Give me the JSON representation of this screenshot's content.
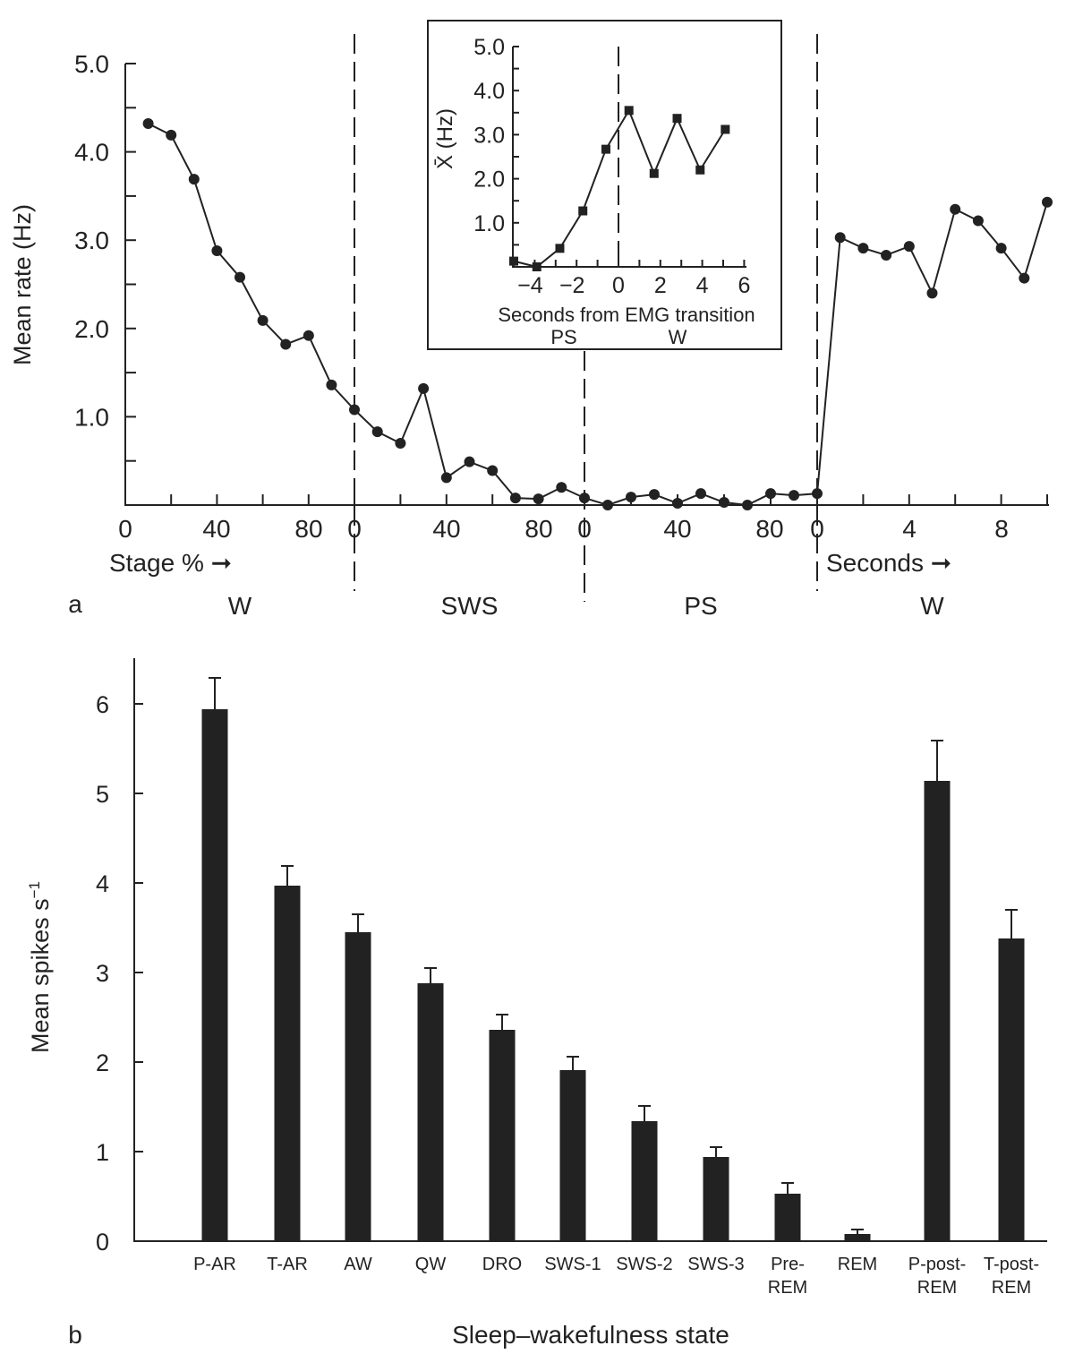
{
  "chart_data": [
    {
      "panel": "a",
      "type": "line",
      "ylabel": "Mean rate (Hz)",
      "ylim": [
        0,
        5.0
      ],
      "yticks": [
        "1.0",
        "2.0",
        "3.0",
        "4.0",
        "5.0"
      ],
      "xtick_labels": [
        "0",
        "40",
        "80",
        "0",
        "40",
        "80",
        "0",
        "40",
        "80",
        "0",
        "4",
        "8"
      ],
      "x_note_left": "Stage % ➞",
      "x_note_right": "Seconds ➞",
      "segments": [
        {
          "label": "W",
          "unit": "Stage %",
          "x": [
            10,
            20,
            30,
            40,
            50,
            60,
            70,
            80,
            90,
            100
          ],
          "y": [
            4.32,
            4.19,
            3.69,
            2.88,
            2.58,
            2.09,
            1.82,
            1.92,
            1.36,
            1.08
          ]
        },
        {
          "label": "SWS",
          "unit": "Stage %",
          "x": [
            10,
            20,
            30,
            40,
            50,
            60,
            70,
            80,
            90,
            100
          ],
          "y": [
            0.83,
            0.7,
            1.32,
            0.31,
            0.49,
            0.39,
            0.08,
            0.07,
            0.2,
            0.08
          ]
        },
        {
          "label": "PS",
          "unit": "Stage %",
          "x": [
            10,
            20,
            30,
            40,
            50,
            60,
            70,
            80,
            90,
            100
          ],
          "y": [
            0.0,
            0.09,
            0.12,
            0.02,
            0.13,
            0.03,
            0.0,
            0.13,
            0.11,
            0.13
          ]
        },
        {
          "label": "W",
          "unit": "Seconds",
          "x": [
            1,
            2,
            3,
            4,
            5,
            6,
            7,
            8,
            9,
            10
          ],
          "y": [
            3.03,
            2.91,
            2.83,
            2.93,
            2.4,
            3.35,
            3.22,
            2.91,
            2.57,
            3.43
          ]
        }
      ],
      "inset": {
        "type": "line",
        "ylabel": "X̄ (Hz)",
        "xlabel": "Seconds from EMG transition",
        "ylim": [
          0,
          5.0
        ],
        "xlim": [
          -5,
          6
        ],
        "yticks": [
          "1.0",
          "2.0",
          "3.0",
          "4.0",
          "5.0"
        ],
        "xticks": [
          "−4",
          "−2",
          "0",
          "2",
          "4",
          "6"
        ],
        "state_left": "PS",
        "state_right": "W",
        "x": [
          -5.0,
          -3.9,
          -2.8,
          -1.7,
          -0.6,
          0.5,
          1.7,
          2.8,
          3.9,
          5.1
        ],
        "y": [
          0.13,
          0.0,
          0.42,
          1.27,
          2.67,
          3.55,
          2.12,
          3.37,
          2.2,
          3.12
        ]
      }
    },
    {
      "panel": "b",
      "type": "bar",
      "ylabel": "Mean spikes s",
      "ylabel_sup": "−1",
      "xlabel": "Sleep–wakefulness state",
      "ylim": [
        0,
        6.5
      ],
      "yticks": [
        "0",
        "1",
        "2",
        "3",
        "4",
        "5",
        "6"
      ],
      "categories": [
        [
          "P-AR"
        ],
        [
          "T-AR"
        ],
        [
          "AW"
        ],
        [
          "QW"
        ],
        [
          "DRO"
        ],
        [
          "SWS-1"
        ],
        [
          "SWS-2"
        ],
        [
          "SWS-3"
        ],
        [
          "Pre-",
          "REM"
        ],
        [
          "REM"
        ],
        [
          "P-post-",
          "REM"
        ],
        [
          "T-post-",
          "REM"
        ]
      ],
      "values": [
        5.94,
        3.97,
        3.45,
        2.88,
        2.36,
        1.91,
        1.34,
        0.94,
        0.53,
        0.08,
        5.14,
        3.38
      ],
      "errors": [
        0.35,
        0.22,
        0.2,
        0.17,
        0.17,
        0.15,
        0.17,
        0.11,
        0.12,
        0.05,
        0.45,
        0.32
      ]
    }
  ]
}
